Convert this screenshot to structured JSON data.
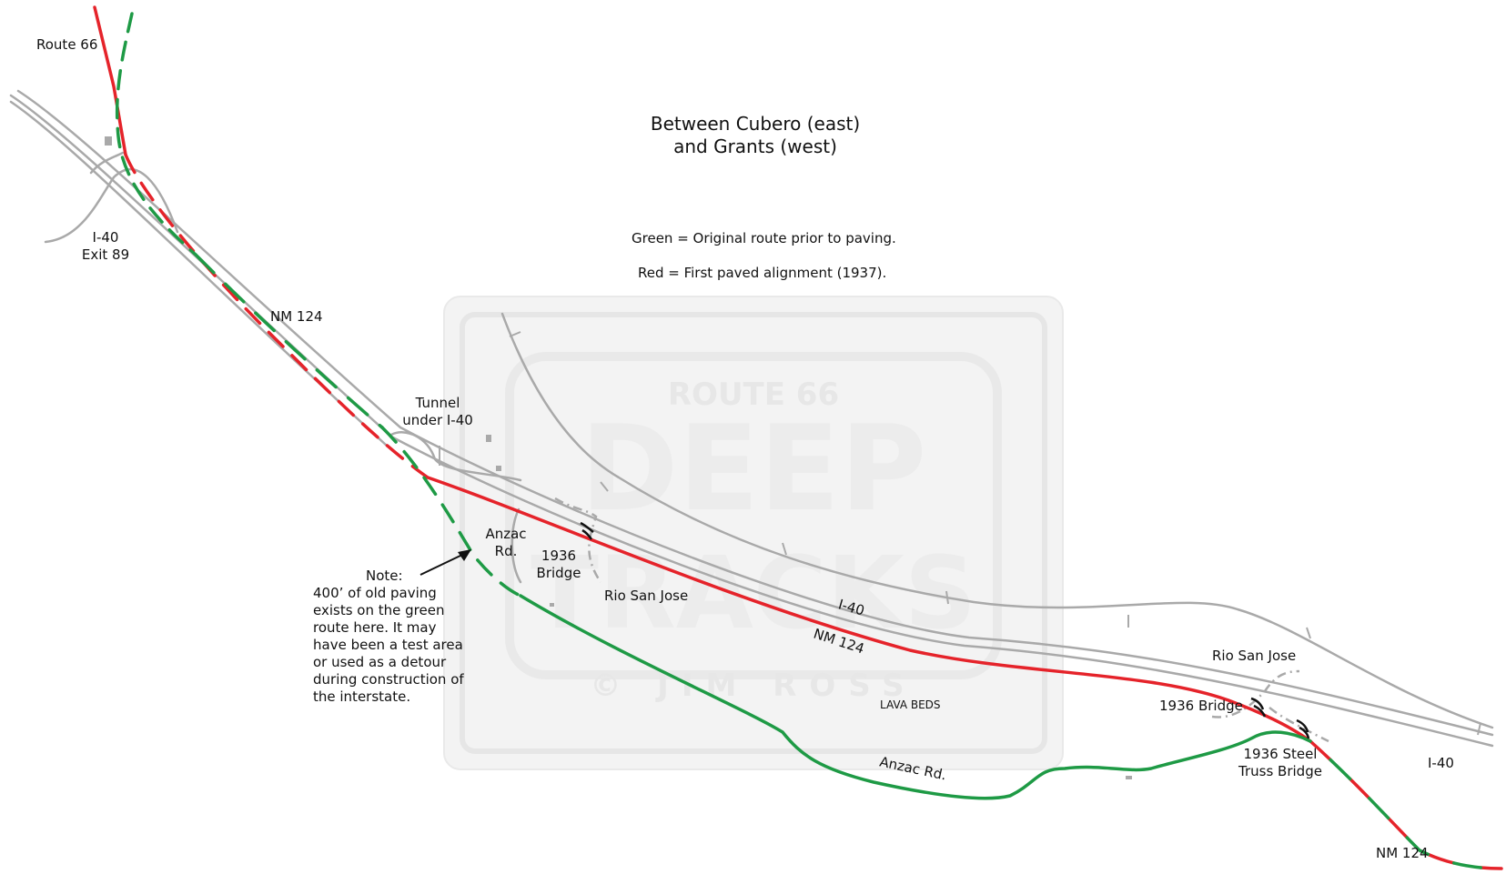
{
  "title": [
    "Between Cubero (east)",
    "and Grants (west)"
  ],
  "legend": {
    "green": "Green = Original route prior to paving.",
    "red": "Red = First paved alignment (1937)."
  },
  "colors": {
    "original_route": "#1e9a45",
    "paved_1937": "#e5232a",
    "roads": "#a9a9a9",
    "watermark": "#eeeeee",
    "text": "#111111"
  },
  "watermark": {
    "line1": "ROUTE 66",
    "line2": "DEEP",
    "line3": "TRACKS",
    "line4": "© JIM ROSS"
  },
  "labels": {
    "route66": "Route 66",
    "exit": [
      "I-40",
      "Exit 89"
    ],
    "nm124_north": "NM 124",
    "tunnel": [
      "Tunnel",
      "under I-40"
    ],
    "anzac_rd": [
      "Anzac",
      "Rd."
    ],
    "bridge_1936_west": [
      "1936",
      "Bridge"
    ],
    "rio_san_jose_west": "Rio San Jose",
    "i40_mid": "I-40",
    "nm124_mid": "NM 124",
    "lava_beds": "LAVA BEDS",
    "anzac_rd_south": "Anzac Rd.",
    "rio_san_jose_east": "Rio San Jose",
    "bridge_1936_east": "1936 Bridge",
    "steel_truss": [
      "1936 Steel",
      "Truss Bridge"
    ],
    "i40_east": "I-40",
    "nm124_south": "NM 124",
    "note": [
      "Note:",
      "400’ of old paving",
      "exists on the green",
      "route here. It may",
      "have been a test area",
      "or used as a detour",
      "during construction of",
      "the interstate."
    ]
  }
}
